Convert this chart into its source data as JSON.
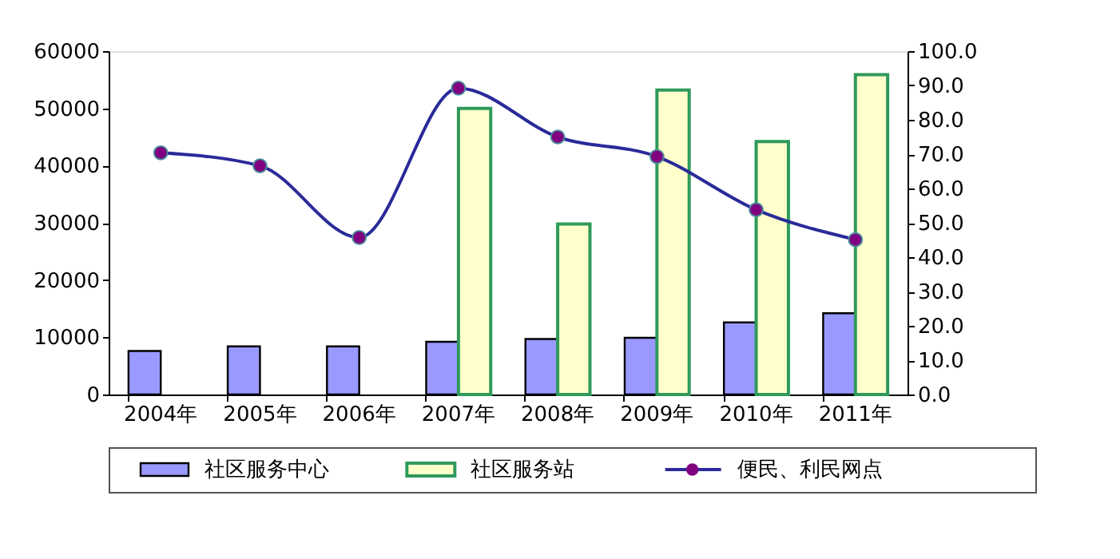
{
  "chart_data": {
    "type": "bar",
    "categories": [
      "2004年",
      "2005年",
      "2006年",
      "2007年",
      "2008年",
      "2009年",
      "2010年",
      "2011年"
    ],
    "series": [
      {
        "name": "社区服务中心",
        "color": "#9999ff",
        "values": [
          7600,
          8400,
          8400,
          9200,
          9700,
          9900,
          12600,
          14200
        ]
      },
      {
        "name": "社区服务站",
        "type": "bar",
        "color": "#ffffcc",
        "values": [
          null,
          null,
          null,
          50000,
          29800,
          53200,
          44200,
          55900
        ]
      },
      {
        "name": "便民、利民网点",
        "type": "line",
        "axis": "y2",
        "color": "#2a2a9a",
        "marker": "circle",
        "values": [
          70.4,
          66.6,
          45.7,
          89.2,
          75.0,
          69.3,
          53.8,
          45.1
        ]
      }
    ],
    "ylim": [
      0,
      60000
    ],
    "yticks": [
      0,
      10000,
      20000,
      30000,
      40000,
      50000,
      60000
    ],
    "y2lim": [
      0,
      100
    ],
    "y2ticks": [
      {
        "value": 0,
        "label": "0.0"
      },
      {
        "value": 10,
        "label": "10.0"
      },
      {
        "value": 20,
        "label": "20.0"
      },
      {
        "value": 30,
        "label": "30.0"
      },
      {
        "value": 40,
        "label": "40.0"
      },
      {
        "value": 50,
        "label": "50.0"
      },
      {
        "value": 60,
        "label": "60.0"
      },
      {
        "value": 70,
        "label": "70.0"
      },
      {
        "value": 80,
        "label": "80.0"
      },
      {
        "value": 90,
        "label": "90.0"
      },
      {
        "value": 100,
        "label": "100.0"
      }
    ],
    "grid": false,
    "legend": "bottom"
  }
}
